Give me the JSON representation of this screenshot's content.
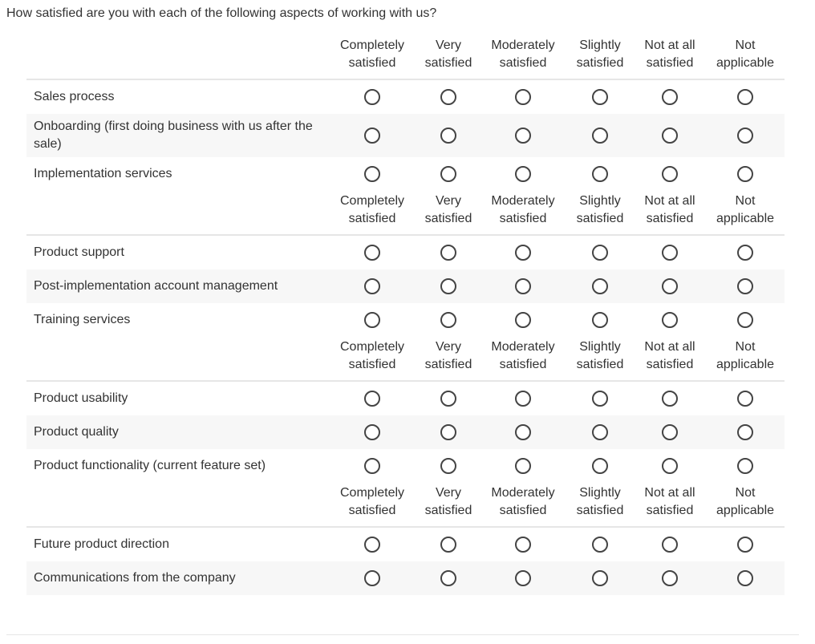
{
  "question": "How satisfied are you with each of the following aspects of working with us?",
  "scale": [
    [
      "Completely",
      "satisfied"
    ],
    [
      "Very",
      "satisfied"
    ],
    [
      "Moderately",
      "satisfied"
    ],
    [
      "Slightly",
      "satisfied"
    ],
    [
      "Not at all",
      "satisfied"
    ],
    [
      "Not",
      "applicable"
    ]
  ],
  "groups": [
    {
      "items": [
        {
          "label": "Sales process",
          "tall": false
        },
        {
          "label": "Onboarding (first doing business with us after the sale)",
          "tall": true
        },
        {
          "label": "Implementation services",
          "tall": false
        }
      ]
    },
    {
      "items": [
        {
          "label": "Product support",
          "tall": false
        },
        {
          "label": "Post-implementation account management",
          "tall": false
        },
        {
          "label": "Training services",
          "tall": false
        }
      ]
    },
    {
      "items": [
        {
          "label": "Product usability",
          "tall": false
        },
        {
          "label": "Product quality",
          "tall": false
        },
        {
          "label": "Product functionality (current feature set)",
          "tall": false
        }
      ]
    },
    {
      "items": [
        {
          "label": "Future product direction",
          "tall": false
        },
        {
          "label": "Communications from the company",
          "tall": false
        }
      ]
    }
  ]
}
